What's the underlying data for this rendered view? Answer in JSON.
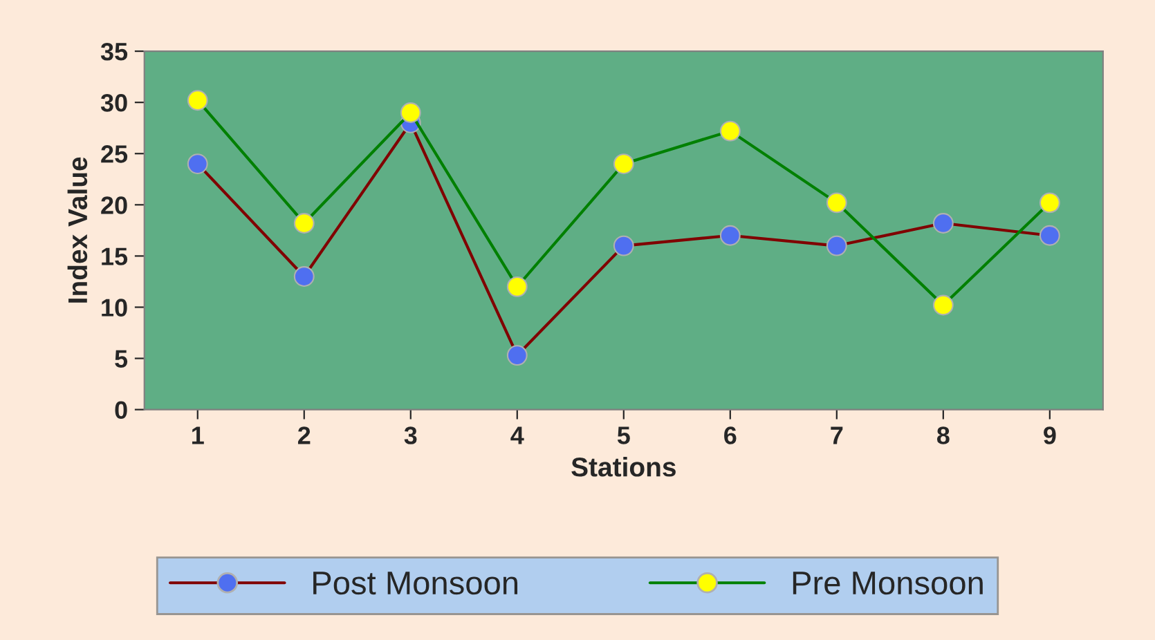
{
  "chart_data": {
    "type": "line",
    "xlabel": "Stations",
    "ylabel": "Index Value",
    "categories": [
      "1",
      "2",
      "3",
      "4",
      "5",
      "6",
      "7",
      "8",
      "9"
    ],
    "series": [
      {
        "name": "Post Monsoon",
        "color": "#800000",
        "values": [
          24,
          13,
          28,
          5.3,
          16,
          17,
          16,
          18.2,
          17
        ]
      },
      {
        "name": "Pre Monsoon",
        "color": "#008000",
        "values": [
          30.2,
          18.2,
          29,
          12,
          24,
          27.2,
          20.2,
          10.2,
          20.2
        ]
      }
    ],
    "ylim": [
      0,
      35
    ],
    "yticks": [
      0,
      5,
      10,
      15,
      20,
      25,
      30,
      35
    ],
    "grid": false,
    "legend": "bottom",
    "marker": "circle",
    "line_style": "solid"
  }
}
